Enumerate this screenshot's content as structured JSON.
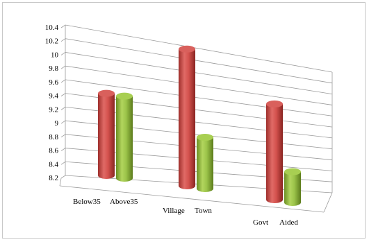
{
  "chart_data": {
    "type": "bar",
    "style": "3d-cylinder",
    "categories": [
      "Below35",
      "Above35",
      "Village",
      "Town",
      "Govt",
      "Aided"
    ],
    "groups": [
      {
        "values": [
          9.4,
          9.4
        ],
        "labels": [
          "Below35",
          "Above35"
        ]
      },
      {
        "values": [
          10.2,
          8.95
        ],
        "labels": [
          "Village",
          "Town"
        ]
      },
      {
        "values": [
          9.6,
          8.65
        ],
        "labels": [
          "Govt",
          "Aided"
        ]
      }
    ],
    "ylim": [
      8.2,
      10.4
    ],
    "yticks": [
      "10.4",
      "10.2",
      "10",
      "9.8",
      "9.6",
      "9.4",
      "9.2",
      "9",
      "8.8",
      "8.6",
      "8.4",
      "8.2"
    ],
    "grid": true,
    "legend": "none",
    "colors": {
      "first": "#c0504d",
      "second": "#8db43e"
    }
  }
}
